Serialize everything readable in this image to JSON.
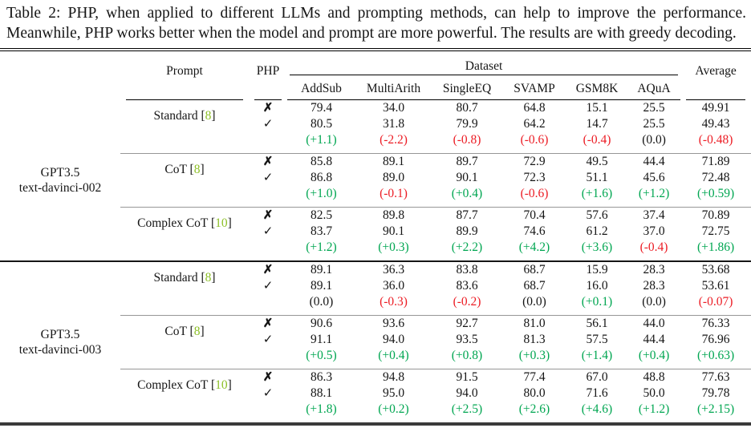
{
  "caption": {
    "text": "Table 2: PHP, when applied to different LLMs and prompting methods, can help to improve the performance. Meanwhile, PHP works better when the model and prompt are more powerful. The results are with greedy decoding."
  },
  "colors": {
    "positive": "#00a651",
    "negative": "#ec1c24",
    "citation": "#8cbf26",
    "rule_gray": "#979797",
    "text": "#151515"
  },
  "table": {
    "headers": {
      "prompt": "Prompt",
      "php": "PHP",
      "dataset_group": "Dataset",
      "datasets": [
        "AddSub",
        "MultiArith",
        "SingleEQ",
        "SVAMP",
        "GSM8K",
        "AQuA"
      ],
      "average": "Average"
    },
    "php_marks": {
      "no": "✗",
      "yes": "✓"
    },
    "models": [
      {
        "name_lines": [
          "GPT3.5",
          "text-davinci-002"
        ],
        "groups": [
          {
            "prompt": "Standard",
            "citation": "8",
            "no_php": [
              "79.4",
              "34.0",
              "80.7",
              "64.8",
              "15.1",
              "25.5",
              "49.91"
            ],
            "with_php": [
              "80.5",
              "31.8",
              "79.9",
              "64.2",
              "14.7",
              "25.5",
              "49.43"
            ],
            "delta": [
              "(+1.1)",
              "(-2.2)",
              "(-0.8)",
              "(-0.6)",
              "(-0.4)",
              "(0.0)",
              "(-0.48)"
            ]
          },
          {
            "prompt": "CoT",
            "citation": "8",
            "no_php": [
              "85.8",
              "89.1",
              "89.7",
              "72.9",
              "49.5",
              "44.4",
              "71.89"
            ],
            "with_php": [
              "86.8",
              "89.0",
              "90.1",
              "72.3",
              "51.1",
              "45.6",
              "72.48"
            ],
            "delta": [
              "(+1.0)",
              "(-0.1)",
              "(+0.4)",
              "(-0.6)",
              "(+1.6)",
              "(+1.2)",
              "(+0.59)"
            ]
          },
          {
            "prompt": "Complex CoT",
            "citation": "10",
            "no_php": [
              "82.5",
              "89.8",
              "87.7",
              "70.4",
              "57.6",
              "37.4",
              "70.89"
            ],
            "with_php": [
              "83.7",
              "90.1",
              "89.9",
              "74.6",
              "61.2",
              "37.0",
              "72.75"
            ],
            "delta": [
              "(+1.2)",
              "(+0.3)",
              "(+2.2)",
              "(+4.2)",
              "(+3.6)",
              "(-0.4)",
              "(+1.86)"
            ]
          }
        ]
      },
      {
        "name_lines": [
          "GPT3.5",
          "text-davinci-003"
        ],
        "groups": [
          {
            "prompt": "Standard",
            "citation": "8",
            "no_php": [
              "89.1",
              "36.3",
              "83.8",
              "68.7",
              "15.9",
              "28.3",
              "53.68"
            ],
            "with_php": [
              "89.1",
              "36.0",
              "83.6",
              "68.7",
              "16.0",
              "28.3",
              "53.61"
            ],
            "delta": [
              "(0.0)",
              "(-0.3)",
              "(-0.2)",
              "(0.0)",
              "(+0.1)",
              "(0.0)",
              "(-0.07)"
            ]
          },
          {
            "prompt": "CoT",
            "citation": "8",
            "no_php": [
              "90.6",
              "93.6",
              "92.7",
              "81.0",
              "56.1",
              "44.0",
              "76.33"
            ],
            "with_php": [
              "91.1",
              "94.0",
              "93.5",
              "81.3",
              "57.5",
              "44.4",
              "76.96"
            ],
            "delta": [
              "(+0.5)",
              "(+0.4)",
              "(+0.8)",
              "(+0.3)",
              "(+1.4)",
              "(+0.4)",
              "(+0.63)"
            ]
          },
          {
            "prompt": "Complex CoT",
            "citation": "10",
            "no_php": [
              "86.3",
              "94.8",
              "91.5",
              "77.4",
              "67.0",
              "48.8",
              "77.63"
            ],
            "with_php": [
              "88.1",
              "95.0",
              "94.0",
              "80.0",
              "71.6",
              "50.0",
              "79.78"
            ],
            "delta": [
              "(+1.8)",
              "(+0.2)",
              "(+2.5)",
              "(+2.6)",
              "(+4.6)",
              "(+1.2)",
              "(+2.15)"
            ]
          }
        ]
      }
    ]
  }
}
